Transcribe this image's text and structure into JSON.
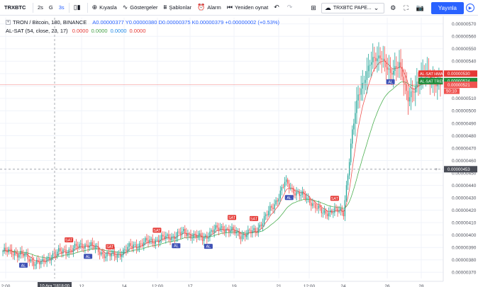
{
  "toolbar": {
    "symbol": "TRXBTC",
    "intervals": [
      "2s",
      "G",
      "3s"
    ],
    "active_interval": "3s",
    "compare": "Kıyasla",
    "indicators": "Göstergeler",
    "templates": "Şablonlar",
    "alarm": "Alarm",
    "replay": "Yeniden oynat",
    "layout_name": "TRXBTC PAPE...",
    "publish": "Yayınla"
  },
  "legend": {
    "title": "TRON / Bitcoin, 180, BINANCE",
    "ohlc": "A0.00000377  Y0.00000380  D0.00000375  K0.00000379  +0.00000002 (+0.53%)",
    "indicator_name": "AL-SAT (54, close, 23, 17)",
    "indicator_values": [
      "0.0000",
      "0.0000",
      "0.0000",
      "0.0000"
    ]
  },
  "price_axis": {
    "ticks": [
      "0.00000570",
      "0.00000560",
      "0.00000550",
      "0.00000540",
      "0.00000530",
      "0.00000520",
      "0.00000510",
      "0.00000500",
      "0.00000490",
      "0.00000480",
      "0.00000470",
      "0.00000460",
      "0.00000450",
      "0.00000440",
      "0.00000430",
      "0.00000420",
      "0.00000410",
      "0.00000400",
      "0.00000390",
      "0.00000380",
      "0.00000370"
    ],
    "crosshair_price": "0.00000453",
    "current_price": "0.00000521",
    "countdown": "50:10",
    "sathma_label": "AL-SAT HMA",
    "sathma_value": "0.00000530",
    "trend_label": "AL-SAT TREND",
    "trend_value": "0.00000524"
  },
  "time_axis": {
    "ticks": [
      "2:00",
      "12",
      "14",
      "12:00",
      "17",
      "19",
      "21",
      "12:00",
      "24",
      "26",
      "28"
    ],
    "crosshair_date": "10 Ara '18",
    "crosshair_time": "18:00"
  },
  "chart_data": {
    "type": "candlestick",
    "symbol": "TRON / Bitcoin",
    "y_range": [
      3.65e-06,
      5.75e-06
    ],
    "signal_labels": {
      "buy": "AL",
      "sell": "SAT"
    },
    "colors": {
      "up": "#26a69a",
      "down": "#ef5350",
      "hma": "#ef5350",
      "trend": "#4caf50",
      "crosshair": "#9598a1",
      "price_line": "#ef5350",
      "trend_tag": "#1e8c3a",
      "hma_tag": "#e53935",
      "buy": "#3f51b5",
      "sell": "#e53935"
    }
  }
}
